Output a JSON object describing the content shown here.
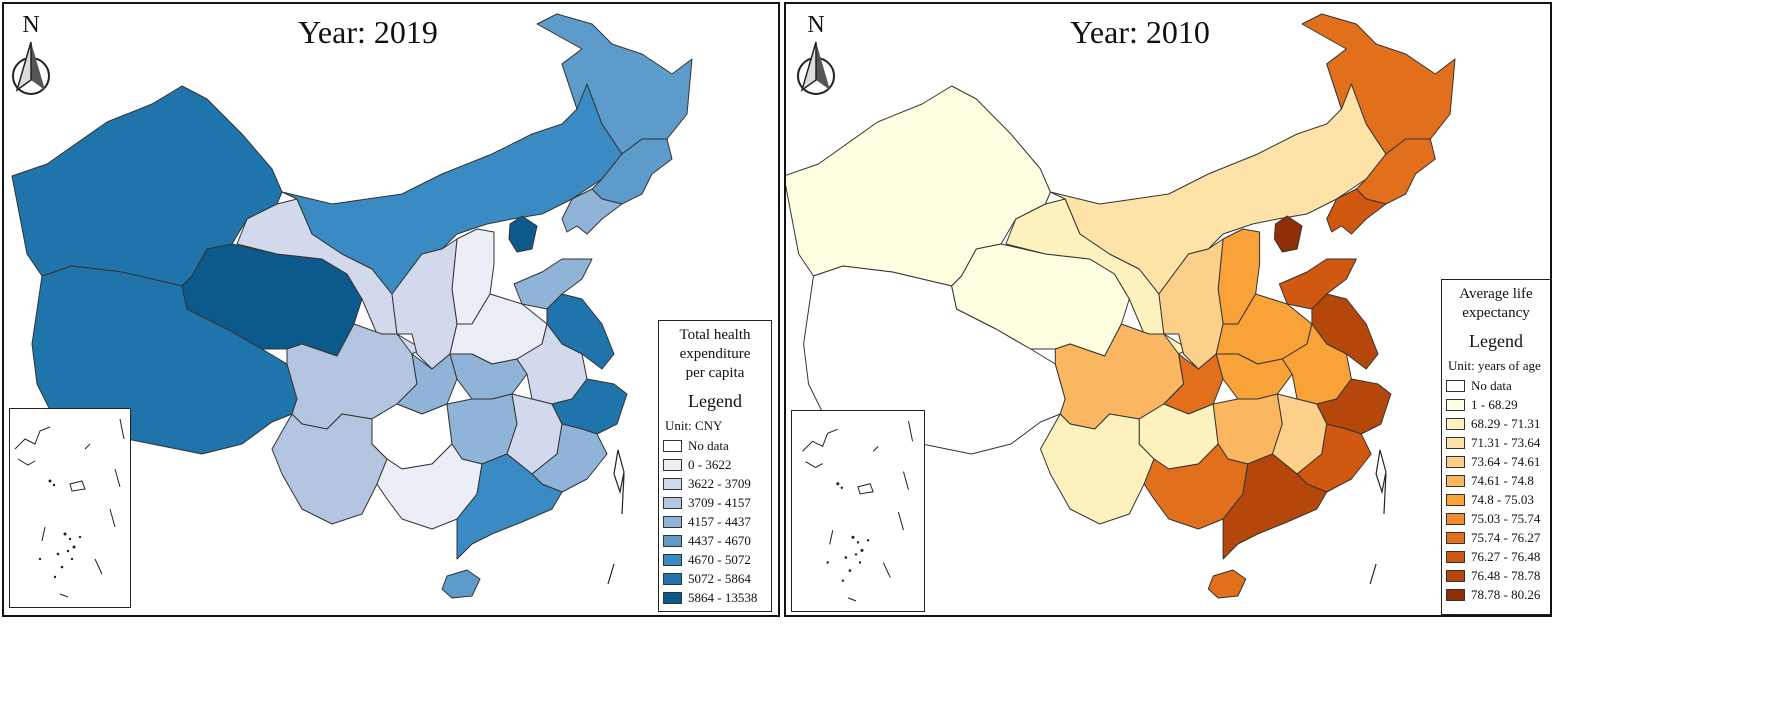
{
  "maps": [
    {
      "title": "Year: 2019",
      "north_label": "N",
      "legend": {
        "title_lines": [
          "Total health",
          "expenditure",
          "per capita"
        ],
        "heading": "Legend",
        "unit": "Unit: CNY",
        "items": [
          {
            "label": "No data",
            "color": "#ffffff"
          },
          {
            "label": "0 - 3622",
            "color": "#eceef7"
          },
          {
            "label": "3622 - 3709",
            "color": "#d2d9ec"
          },
          {
            "label": "3709 - 4157",
            "color": "#b4c5e1"
          },
          {
            "label": "4157 - 4437",
            "color": "#8fb4d8"
          },
          {
            "label": "4437 - 4670",
            "color": "#5d9cca"
          },
          {
            "label": "4670 - 5072",
            "color": "#3a8bc3"
          },
          {
            "label": "5072 - 5864",
            "color": "#1f74ab"
          },
          {
            "label": "5864 - 13538",
            "color": "#0c5a8c"
          }
        ]
      }
    },
    {
      "title": "Year: 2010",
      "north_label": "N",
      "legend": {
        "title_lines": [
          "Average life",
          "expectancy"
        ],
        "heading": "Legend",
        "unit": "Unit: years of age",
        "items": [
          {
            "label": "No data",
            "color": "#ffffff"
          },
          {
            "label": "1 - 68.29",
            "color": "#fefee0"
          },
          {
            "label": "68.29 - 71.31",
            "color": "#fdf1bd"
          },
          {
            "label": "71.31 - 73.64",
            "color": "#fde3a7"
          },
          {
            "label": "73.64 - 74.61",
            "color": "#fcd08b"
          },
          {
            "label": "74.61 - 74.8",
            "color": "#fab660"
          },
          {
            "label": "74.8 - 75.03",
            "color": "#f9a237"
          },
          {
            "label": "75.03 - 75.74",
            "color": "#f28b2f"
          },
          {
            "label": "75.74 - 76.27",
            "color": "#e16f1c"
          },
          {
            "label": "76.27 - 76.48",
            "color": "#d05810"
          },
          {
            "label": "76.48 - 78.78",
            "color": "#b5470b"
          },
          {
            "label": "78.78 - 80.26",
            "color": "#8e2f05"
          }
        ]
      }
    }
  ],
  "province_classes": {
    "xinjiang": [
      7,
      1
    ],
    "xizang": [
      7,
      0
    ],
    "qinghai": [
      8,
      1
    ],
    "gansu": [
      2,
      2
    ],
    "innermongolia": [
      6,
      3
    ],
    "heilongjiang": [
      5,
      8
    ],
    "jilin": [
      5,
      8
    ],
    "liaoning": [
      4,
      9
    ],
    "beijing": [
      8,
      11
    ],
    "shanxi": [
      1,
      6
    ],
    "shaanxi": [
      2,
      4
    ],
    "henan": [
      1,
      6
    ],
    "shandong": [
      4,
      9
    ],
    "jiangsu": [
      7,
      10
    ],
    "sichuan": [
      3,
      5
    ],
    "chongqing": [
      4,
      8
    ],
    "hubei": [
      4,
      6
    ],
    "anhui": [
      2,
      6
    ],
    "guizhou": [
      0,
      2
    ],
    "yunnan": [
      3,
      2
    ],
    "hunan": [
      4,
      5
    ],
    "jiangxi": [
      2,
      4
    ],
    "zhejiang": [
      7,
      10
    ],
    "fujian": [
      4,
      9
    ],
    "guangxi": [
      1,
      8
    ],
    "guangdong": [
      6,
      10
    ],
    "hainan": [
      5,
      8
    ]
  }
}
